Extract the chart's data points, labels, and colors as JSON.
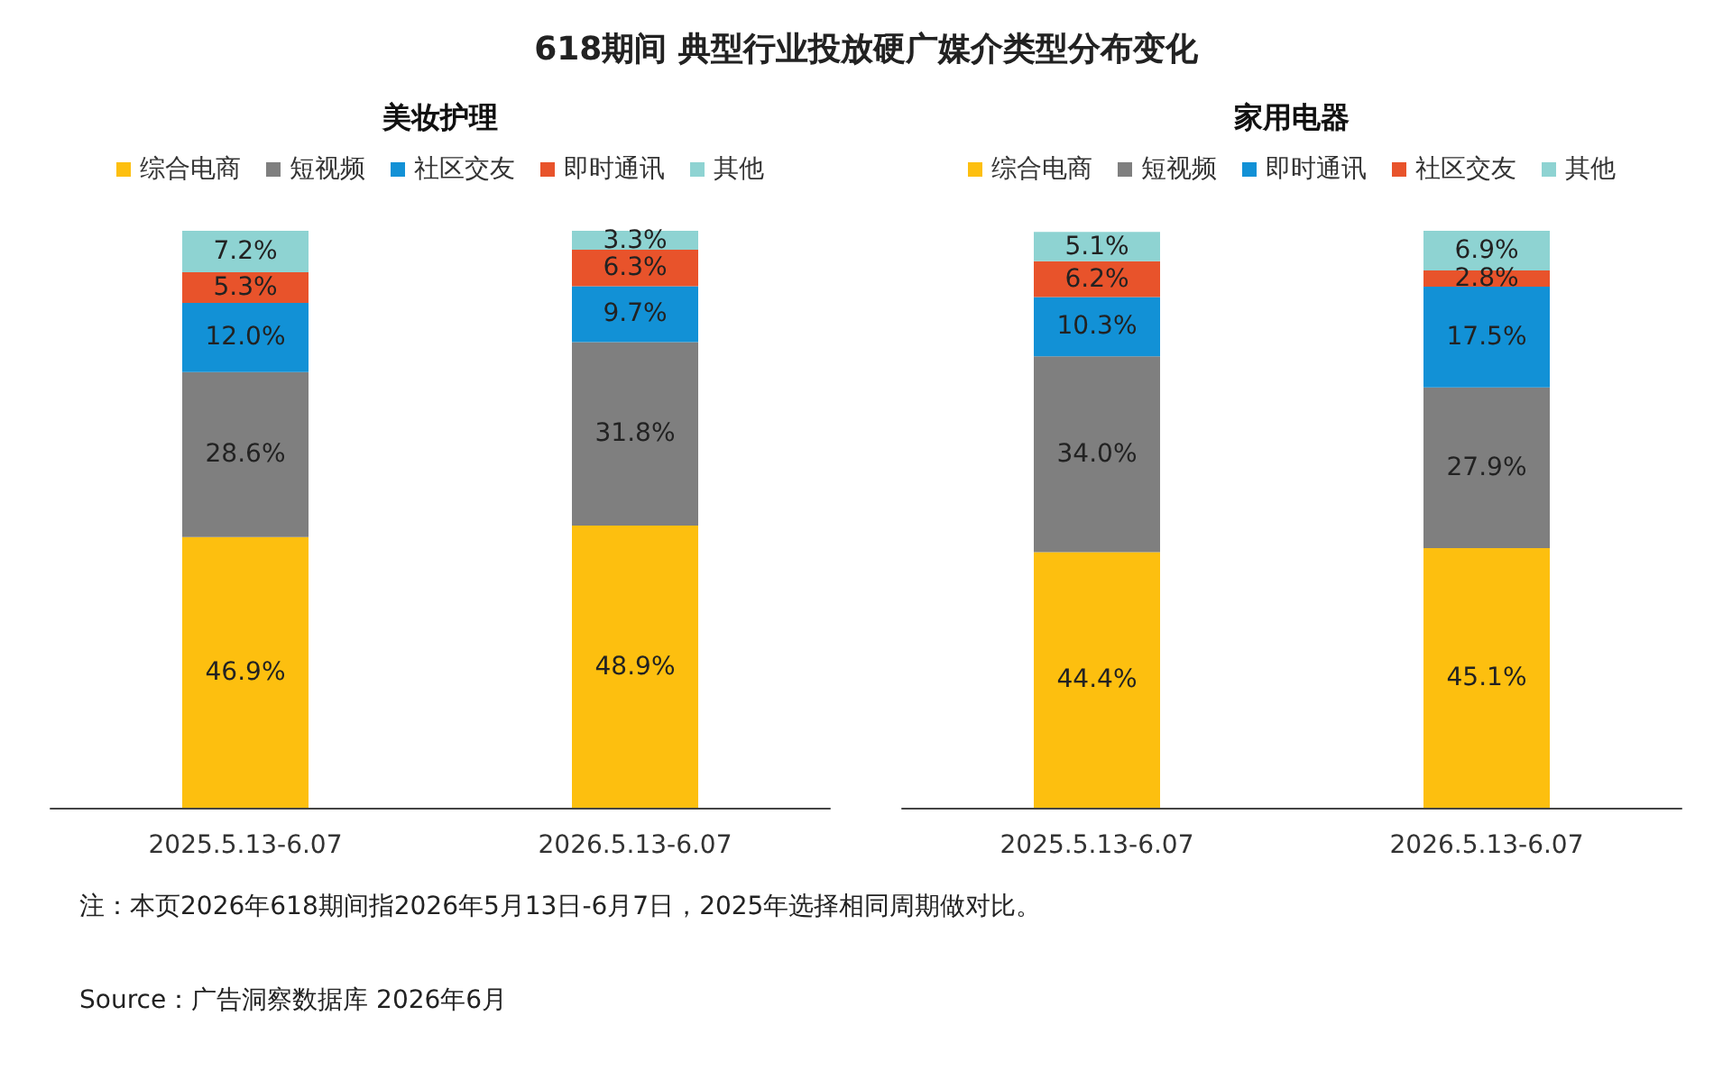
{
  "chart_data": [
    {
      "type": "bar",
      "title": "618期间 典型行业投放硬广媒介类型分布变化",
      "subtitle": "美妆护理",
      "categories": [
        "2025.5.13-6.07",
        "2026.5.13-6.07"
      ],
      "stacked": true,
      "legend": "top",
      "series": [
        {
          "name": "综合电商",
          "color": "#fdbf0f",
          "values": [
            46.9,
            48.9
          ],
          "value_labels": [
            "46.9%",
            "48.9%"
          ]
        },
        {
          "name": "短视频",
          "color": "#7f7f7f",
          "values": [
            28.6,
            31.8
          ],
          "value_labels": [
            "28.6%",
            "31.8%"
          ]
        },
        {
          "name": "社区交友",
          "color": "#1291d6",
          "values": [
            12.0,
            9.7
          ],
          "value_labels": [
            "12.0%",
            "9.7%"
          ]
        },
        {
          "name": "即时通讯",
          "color": "#e8532b",
          "values": [
            5.3,
            6.3
          ],
          "value_labels": [
            "5.3%",
            "6.3%"
          ]
        },
        {
          "name": "其他",
          "color": "#8ed3d2",
          "values": [
            7.2,
            3.3
          ],
          "value_labels": [
            "7.2%",
            "3.3%"
          ]
        }
      ],
      "annotations": [
        "注：本页2026年618期间指2026年5月13日-6月7日，2025年选择相同周期做对比。",
        "Source：广告洞察数据库 2026年6月"
      ]
    },
    {
      "type": "bar",
      "subtitle": "家用电器",
      "categories": [
        "2025.5.13-6.07",
        "2026.5.13-6.07"
      ],
      "stacked": true,
      "legend": "top",
      "series": [
        {
          "name": "综合电商",
          "color": "#fdbf0f",
          "values": [
            44.4,
            45.1
          ],
          "value_labels": [
            "44.4%",
            "45.1%"
          ]
        },
        {
          "name": "短视频",
          "color": "#7f7f7f",
          "values": [
            34.0,
            27.9
          ],
          "value_labels": [
            "34.0%",
            "27.9%"
          ]
        },
        {
          "name": "即时通讯",
          "color": "#1291d6",
          "values": [
            10.3,
            17.5
          ],
          "value_labels": [
            "10.3%",
            "17.5%"
          ]
        },
        {
          "name": "社区交友",
          "color": "#e8532b",
          "values": [
            6.2,
            2.8
          ],
          "value_labels": [
            "6.2%",
            "2.8%"
          ]
        },
        {
          "name": "其他",
          "color": "#8ed3d2",
          "values": [
            5.1,
            6.9
          ],
          "value_labels": [
            "5.1%",
            "6.9%"
          ]
        }
      ]
    }
  ]
}
